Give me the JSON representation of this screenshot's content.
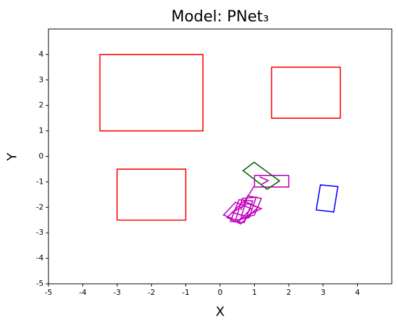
{
  "chart_data": {
    "type": "shapes",
    "title": "Model: PNet₃",
    "x_label": "X",
    "y_label": "Y",
    "xlim": [
      -5,
      5
    ],
    "ylim": [
      -5,
      5
    ],
    "xticks": [
      -5,
      -4,
      -3,
      -2,
      -1,
      0,
      1,
      2,
      3,
      4
    ],
    "yticks": [
      -5,
      -4,
      -3,
      -2,
      -1,
      0,
      1,
      2,
      3,
      4
    ],
    "shapes": [
      {
        "color": "#ff0000",
        "closed": true,
        "points": [
          [
            -3.5,
            1
          ],
          [
            -0.5,
            1
          ],
          [
            -0.5,
            4
          ],
          [
            -3.5,
            4
          ]
        ]
      },
      {
        "color": "#ff0000",
        "closed": true,
        "points": [
          [
            1.5,
            1.5
          ],
          [
            3.5,
            1.5
          ],
          [
            3.5,
            3.5
          ],
          [
            1.5,
            3.5
          ]
        ]
      },
      {
        "color": "#ff0000",
        "closed": true,
        "points": [
          [
            -3,
            -2.5
          ],
          [
            -1,
            -2.5
          ],
          [
            -1,
            -0.5
          ],
          [
            -3,
            -0.5
          ]
        ]
      },
      {
        "color": "#bf00bf",
        "closed": true,
        "points": [
          [
            1,
            -1.2
          ],
          [
            2,
            -1.2
          ],
          [
            2,
            -0.75
          ],
          [
            1,
            -0.75
          ]
        ]
      },
      {
        "color": "#006400",
        "closed": true,
        "points": [
          [
            0.67,
            -0.56
          ],
          [
            0.99,
            -0.23
          ],
          [
            1.73,
            -0.96
          ],
          [
            1.37,
            -1.29
          ]
        ]
      },
      {
        "color": "#0000ff",
        "closed": true,
        "points": [
          [
            2.92,
            -1.12
          ],
          [
            3.43,
            -1.18
          ],
          [
            3.31,
            -2.18
          ],
          [
            2.8,
            -2.1
          ]
        ]
      },
      {
        "color": "#bf00bf",
        "closed": true,
        "points": [
          [
            0.3,
            -2.55
          ],
          [
            0.7,
            -2.6
          ],
          [
            0.95,
            -1.75
          ],
          [
            0.55,
            -1.7
          ]
        ]
      },
      {
        "color": "#bf00bf",
        "closed": true,
        "points": [
          [
            0.2,
            -2.4
          ],
          [
            0.6,
            -2.65
          ],
          [
            1.1,
            -2.0
          ],
          [
            0.7,
            -1.75
          ]
        ]
      },
      {
        "color": "#bf00bf",
        "closed": true,
        "points": [
          [
            0.45,
            -2.5
          ],
          [
            0.85,
            -2.4
          ],
          [
            1.05,
            -1.6
          ],
          [
            0.65,
            -1.65
          ]
        ]
      },
      {
        "color": "#bf00bf",
        "closed": true,
        "points": [
          [
            0.1,
            -2.3
          ],
          [
            0.55,
            -2.55
          ],
          [
            0.9,
            -2.05
          ],
          [
            0.45,
            -1.8
          ]
        ]
      },
      {
        "color": "#bf00bf",
        "closed": true,
        "points": [
          [
            0.6,
            -2.45
          ],
          [
            1.0,
            -2.3
          ],
          [
            1.2,
            -1.65
          ],
          [
            0.8,
            -1.55
          ]
        ]
      },
      {
        "color": "#bf00bf",
        "closed": true,
        "points": [
          [
            0.35,
            -2.2
          ],
          [
            0.75,
            -2.35
          ],
          [
            1.2,
            -2.05
          ],
          [
            0.8,
            -1.85
          ]
        ]
      },
      {
        "color": "#bf00bf",
        "closed": false,
        "points": [
          [
            0.6,
            -2.1
          ],
          [
            0.75,
            -1.7
          ],
          [
            1.0,
            -1.15
          ]
        ]
      },
      {
        "color": "#bf00bf",
        "closed": false,
        "points": [
          [
            1.15,
            -0.8
          ],
          [
            1.4,
            -0.95
          ],
          [
            1.2,
            -1.1
          ]
        ]
      }
    ]
  }
}
